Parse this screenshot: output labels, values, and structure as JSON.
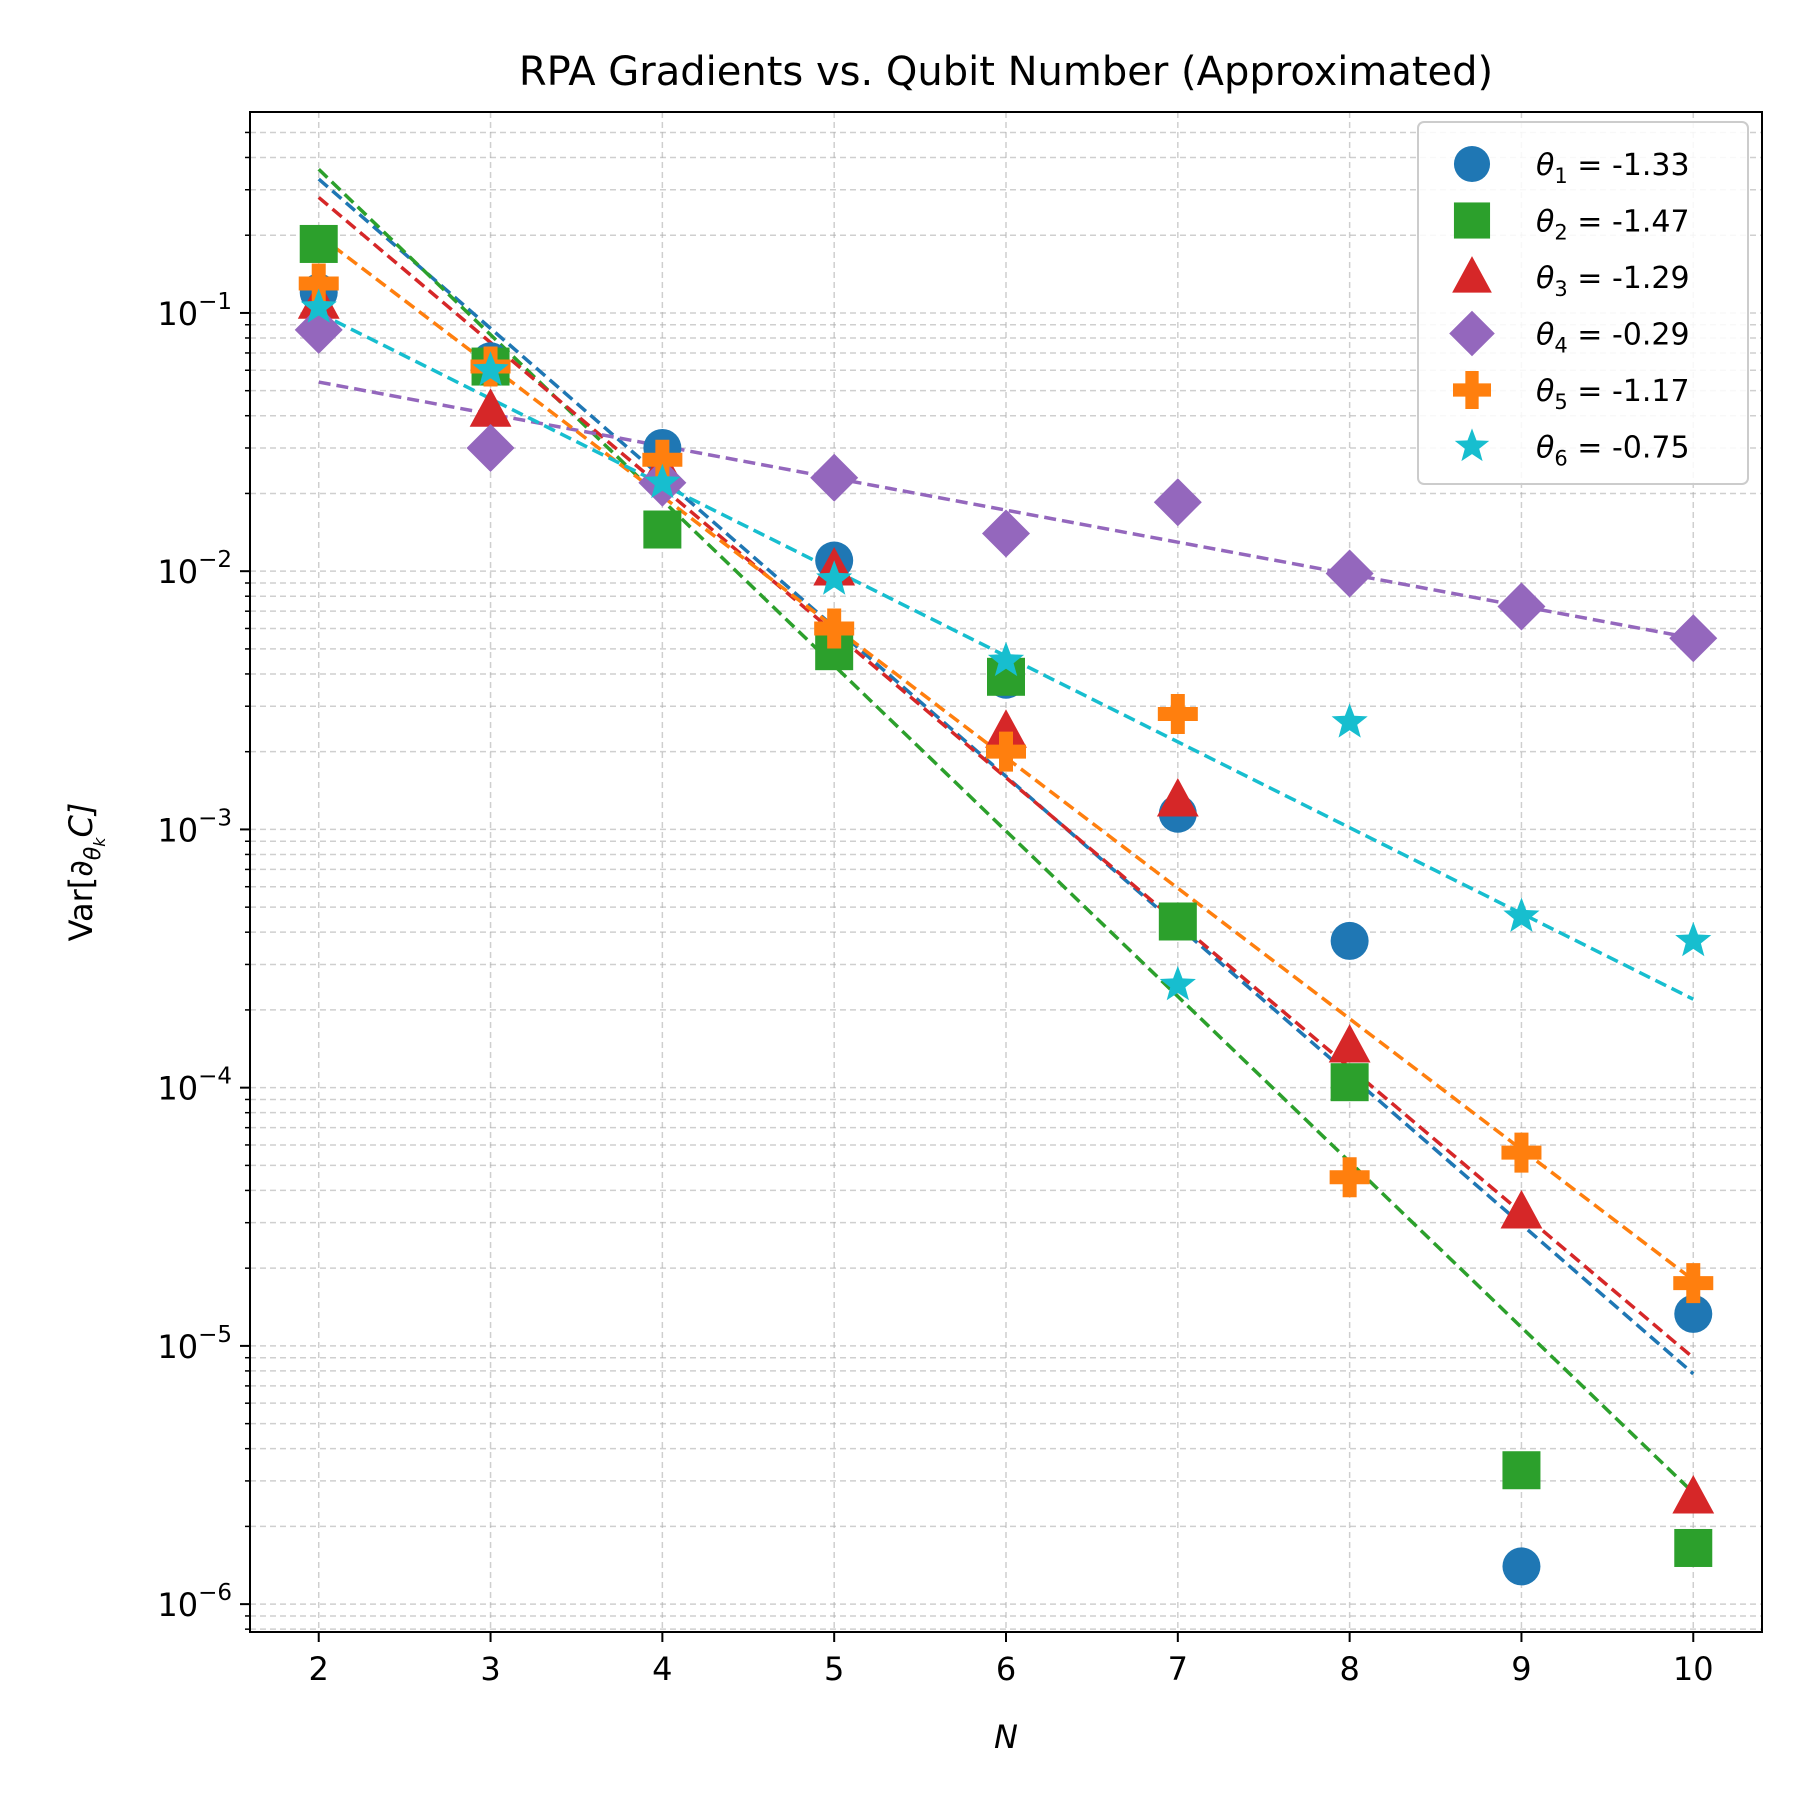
{
  "chart_data": {
    "type": "scatter",
    "title": "RPA Gradients vs. Qubit Number (Approximated)",
    "xlabel": "N",
    "ylabel": "Var[∂θkC]",
    "ylabel_parts": {
      "base": "Var[∂",
      "sub": "θ",
      "subsub": "k",
      "tail": "C]"
    },
    "xlim": [
      1.6,
      10.4
    ],
    "ylim": [
      7.8e-07,
      0.6
    ],
    "yscale": "log",
    "x_ticks": [
      "2",
      "3",
      "4",
      "5",
      "6",
      "7",
      "8",
      "9",
      "10"
    ],
    "y_ticks": [
      {
        "value": 0.1,
        "base": "10",
        "exp": "−1"
      },
      {
        "value": 0.01,
        "base": "10",
        "exp": "−2"
      },
      {
        "value": 0.001,
        "base": "10",
        "exp": "−3"
      },
      {
        "value": 0.0001,
        "base": "10",
        "exp": "−4"
      },
      {
        "value": 1e-05,
        "base": "10",
        "exp": "−5"
      },
      {
        "value": 1e-06,
        "base": "10",
        "exp": "−6"
      }
    ],
    "grid": true,
    "legend_position": "top-right",
    "x": [
      2,
      3,
      4,
      5,
      6,
      7,
      8,
      9,
      10
    ],
    "series": [
      {
        "name": "θ1 = -1.33",
        "sym": "θ",
        "sub": "1",
        "val": " = -1.33",
        "color": "#1f77b4",
        "marker": "circle",
        "values": [
          0.12,
          0.065,
          0.03,
          0.011,
          0.0038,
          0.00115,
          0.00037,
          1.4e-06,
          1.33e-05
        ],
        "fit": [
          0.33,
          7.8e-06
        ]
      },
      {
        "name": "θ2 = -1.47",
        "sym": "θ",
        "sub": "2",
        "val": " = -1.47",
        "color": "#2ca02c",
        "marker": "square",
        "values": [
          0.185,
          0.062,
          0.0145,
          0.0049,
          0.0039,
          0.00044,
          0.000105,
          3.3e-06,
          1.65e-06
        ],
        "fit": [
          0.36,
          2.7e-06
        ]
      },
      {
        "name": "θ3 = -1.29",
        "sym": "θ",
        "sub": "3",
        "val": " = -1.29",
        "color": "#d62728",
        "marker": "triangle",
        "values": [
          0.11,
          0.042,
          0.025,
          0.0102,
          0.0024,
          0.0013,
          0.000145,
          3.3e-05,
          2.6e-06
        ],
        "fit": [
          0.28,
          9e-06
        ]
      },
      {
        "name": "θ4 = -0.29",
        "sym": "θ",
        "sub": "4",
        "val": " = -0.29",
        "color": "#9467bd",
        "marker": "diamond",
        "values": [
          0.086,
          0.03,
          0.022,
          0.023,
          0.014,
          0.0185,
          0.0098,
          0.0073,
          0.0055
        ],
        "fit": [
          0.054,
          0.0055
        ]
      },
      {
        "name": "θ5 = -1.17",
        "sym": "θ",
        "sub": "5",
        "val": " = -1.17",
        "color": "#ff7f0e",
        "marker": "plus",
        "values": [
          0.13,
          0.062,
          0.027,
          0.006,
          0.002,
          0.0028,
          4.5e-05,
          5.6e-05,
          1.75e-05
        ],
        "fit": [
          0.2,
          1.8e-05
        ]
      },
      {
        "name": "θ6 = -0.75",
        "sym": "θ",
        "sub": "6",
        "val": " = -0.75",
        "color": "#17becf",
        "marker": "star",
        "values": [
          0.105,
          0.06,
          0.022,
          0.0093,
          0.0045,
          0.00025,
          0.0026,
          0.00046,
          0.00037
        ],
        "fit": [
          0.1,
          0.00022
        ]
      }
    ]
  }
}
